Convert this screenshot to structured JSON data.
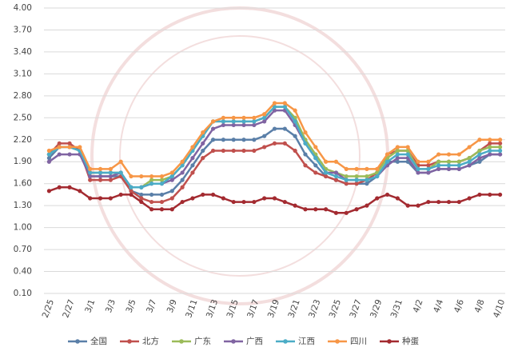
{
  "chart_data": {
    "type": "line",
    "categories": [
      "2/25",
      null,
      "2/27",
      null,
      "3/1",
      null,
      "3/3",
      null,
      "3/5",
      null,
      "3/7",
      null,
      "3/9",
      null,
      "3/11",
      null,
      "3/13",
      null,
      "3/15",
      null,
      "3/17",
      null,
      "3/19",
      null,
      "3/21",
      null,
      "3/23",
      null,
      "3/25",
      null,
      "3/27",
      null,
      "3/29",
      null,
      "3/31",
      null,
      "4/2",
      null,
      "4/4",
      null,
      "4/6",
      null,
      "4/8",
      null,
      "4/10"
    ],
    "ylim": [
      0.1,
      4.0
    ],
    "yticks": [
      {
        "value": 0.1,
        "label": "0.10"
      },
      {
        "value": 0.4,
        "label": "0.40"
      },
      {
        "value": 0.7,
        "label": "0.70"
      },
      {
        "value": 1.0,
        "label": "1.00"
      },
      {
        "value": 1.3,
        "label": "1.30"
      },
      {
        "value": 1.6,
        "label": "1.60"
      },
      {
        "value": 1.9,
        "label": "1.90"
      },
      {
        "value": 2.2,
        "label": "2.20"
      },
      {
        "value": 2.5,
        "label": "2.50"
      },
      {
        "value": 2.8,
        "label": "2.80"
      },
      {
        "value": 3.1,
        "label": "3.10"
      },
      {
        "value": 3.4,
        "label": "3.40"
      },
      {
        "value": 3.7,
        "label": "3.70"
      },
      {
        "value": 4.0,
        "label": "4.00"
      }
    ],
    "grid": true,
    "legend": "bottom",
    "series": [
      {
        "name": "全国",
        "color": "#5a7fa8",
        "values": [
          1.95,
          2.1,
          2.1,
          2.05,
          1.7,
          1.7,
          1.7,
          1.7,
          1.5,
          1.45,
          1.45,
          1.45,
          1.5,
          1.65,
          1.85,
          2.05,
          2.2,
          2.2,
          2.2,
          2.2,
          2.2,
          2.25,
          2.35,
          2.35,
          2.25,
          2.0,
          1.85,
          1.7,
          1.65,
          1.6,
          1.6,
          1.6,
          1.7,
          1.9,
          1.9,
          1.9,
          1.75,
          1.75,
          1.8,
          1.8,
          1.8,
          1.85,
          1.9,
          2.0,
          2.0
        ]
      },
      {
        "name": "北方",
        "color": "#c0504d",
        "values": [
          2.0,
          2.15,
          2.15,
          2.05,
          1.65,
          1.65,
          1.65,
          1.7,
          1.5,
          1.4,
          1.35,
          1.35,
          1.4,
          1.55,
          1.75,
          1.95,
          2.05,
          2.05,
          2.05,
          2.05,
          2.05,
          2.1,
          2.15,
          2.15,
          2.05,
          1.85,
          1.75,
          1.7,
          1.65,
          1.6,
          1.6,
          1.65,
          1.75,
          2.0,
          2.05,
          2.05,
          1.85,
          1.85,
          1.9,
          1.9,
          1.9,
          1.95,
          2.05,
          2.15,
          2.15
        ]
      },
      {
        "name": "广东",
        "color": "#9bbb59",
        "values": [
          2.0,
          2.1,
          2.1,
          2.05,
          1.75,
          1.75,
          1.75,
          1.75,
          1.55,
          1.55,
          1.65,
          1.65,
          1.7,
          1.85,
          2.05,
          2.25,
          2.45,
          2.45,
          2.45,
          2.45,
          2.45,
          2.5,
          2.65,
          2.65,
          2.5,
          2.2,
          2.0,
          1.8,
          1.75,
          1.7,
          1.7,
          1.7,
          1.75,
          1.95,
          2.05,
          2.05,
          1.8,
          1.8,
          1.9,
          1.9,
          1.9,
          1.95,
          2.05,
          2.1,
          2.1
        ]
      },
      {
        "name": "广西",
        "color": "#8064a2",
        "values": [
          1.9,
          2.0,
          2.0,
          2.0,
          1.7,
          1.7,
          1.7,
          1.75,
          1.55,
          1.55,
          1.6,
          1.6,
          1.65,
          1.75,
          1.95,
          2.15,
          2.35,
          2.4,
          2.4,
          2.4,
          2.4,
          2.45,
          2.6,
          2.6,
          2.4,
          2.15,
          1.95,
          1.75,
          1.75,
          1.65,
          1.65,
          1.65,
          1.7,
          1.85,
          1.95,
          1.95,
          1.75,
          1.75,
          1.8,
          1.8,
          1.8,
          1.85,
          1.95,
          2.0,
          2.0
        ]
      },
      {
        "name": "江西",
        "color": "#4bacc6",
        "values": [
          2.0,
          2.1,
          2.1,
          2.05,
          1.75,
          1.75,
          1.75,
          1.75,
          1.55,
          1.55,
          1.6,
          1.6,
          1.7,
          1.85,
          2.05,
          2.25,
          2.45,
          2.45,
          2.45,
          2.45,
          2.45,
          2.5,
          2.65,
          2.65,
          2.45,
          2.15,
          1.95,
          1.75,
          1.7,
          1.65,
          1.65,
          1.65,
          1.7,
          1.9,
          2.0,
          2.0,
          1.8,
          1.8,
          1.85,
          1.85,
          1.85,
          1.9,
          2.0,
          2.05,
          2.05
        ]
      },
      {
        "name": "四川",
        "color": "#f79646",
        "values": [
          2.05,
          2.1,
          2.1,
          2.1,
          1.8,
          1.8,
          1.8,
          1.9,
          1.7,
          1.7,
          1.7,
          1.7,
          1.75,
          1.9,
          2.1,
          2.3,
          2.45,
          2.5,
          2.5,
          2.5,
          2.5,
          2.55,
          2.7,
          2.7,
          2.6,
          2.3,
          2.1,
          1.9,
          1.9,
          1.8,
          1.8,
          1.8,
          1.8,
          2.0,
          2.1,
          2.1,
          1.9,
          1.9,
          2.0,
          2.0,
          2.0,
          2.1,
          2.2,
          2.2,
          2.2
        ]
      },
      {
        "name": "种蛋",
        "color": "#a32a30",
        "values": [
          1.5,
          1.55,
          1.55,
          1.5,
          1.4,
          1.4,
          1.4,
          1.45,
          1.45,
          1.35,
          1.25,
          1.25,
          1.25,
          1.35,
          1.4,
          1.45,
          1.45,
          1.4,
          1.35,
          1.35,
          1.35,
          1.4,
          1.4,
          1.35,
          1.3,
          1.25,
          1.25,
          1.25,
          1.2,
          1.2,
          1.25,
          1.3,
          1.4,
          1.45,
          1.4,
          1.3,
          1.3,
          1.35,
          1.35,
          1.35,
          1.35,
          1.4,
          1.45,
          1.45,
          1.45
        ]
      }
    ]
  }
}
